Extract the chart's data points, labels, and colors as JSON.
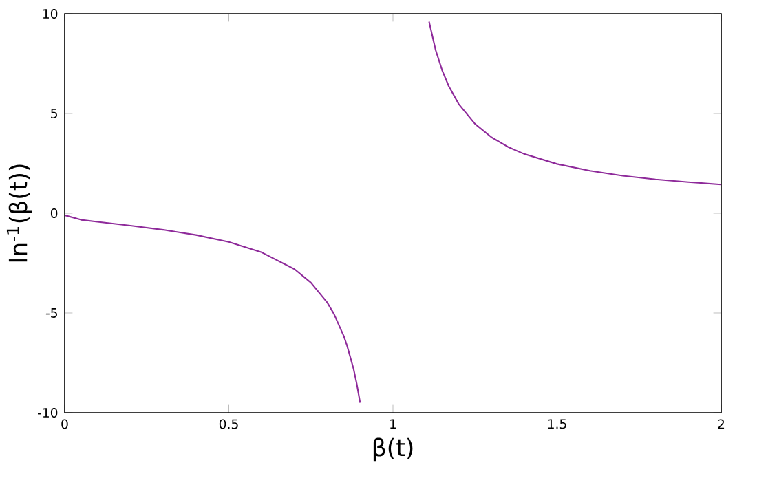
{
  "chart_data": {
    "type": "line",
    "xlabel": "β(t)",
    "ylabel": "ln$^{-1}$(β(t))",
    "x": [
      0,
      0.05,
      0.1,
      0.2,
      0.3,
      0.4,
      0.5,
      0.6,
      0.7,
      0.75,
      0.8,
      0.82,
      0.85,
      0.86,
      0.88,
      0.89,
      0.9,
      1,
      1.11,
      1.13,
      1.15,
      1.17,
      1.2,
      1.25,
      1.3,
      1.35,
      1.4,
      1.5,
      1.6,
      1.7,
      1.8,
      1.9,
      2
    ],
    "series": [
      {
        "color": "#8e2a9a",
        "values": [
          -0.1,
          -0.33,
          -0.43,
          -0.62,
          -0.83,
          -1.09,
          -1.44,
          -1.96,
          -2.8,
          -3.48,
          -4.48,
          -5.04,
          -6.15,
          -6.63,
          -7.8,
          -8.58,
          -9.5,
          null,
          9.6,
          8.18,
          7.16,
          6.37,
          5.48,
          4.48,
          3.81,
          3.33,
          2.97,
          2.47,
          2.13,
          1.88,
          1.7,
          1.56,
          1.44
        ]
      }
    ],
    "xlim": [
      0,
      2
    ],
    "ylim": [
      -10,
      10
    ],
    "xticks": [
      0,
      0.5,
      1,
      1.5,
      2
    ],
    "yticks": [
      -10,
      -5,
      0,
      5,
      10
    ],
    "grid": false,
    "marker": "none",
    "line_style": "solid"
  }
}
